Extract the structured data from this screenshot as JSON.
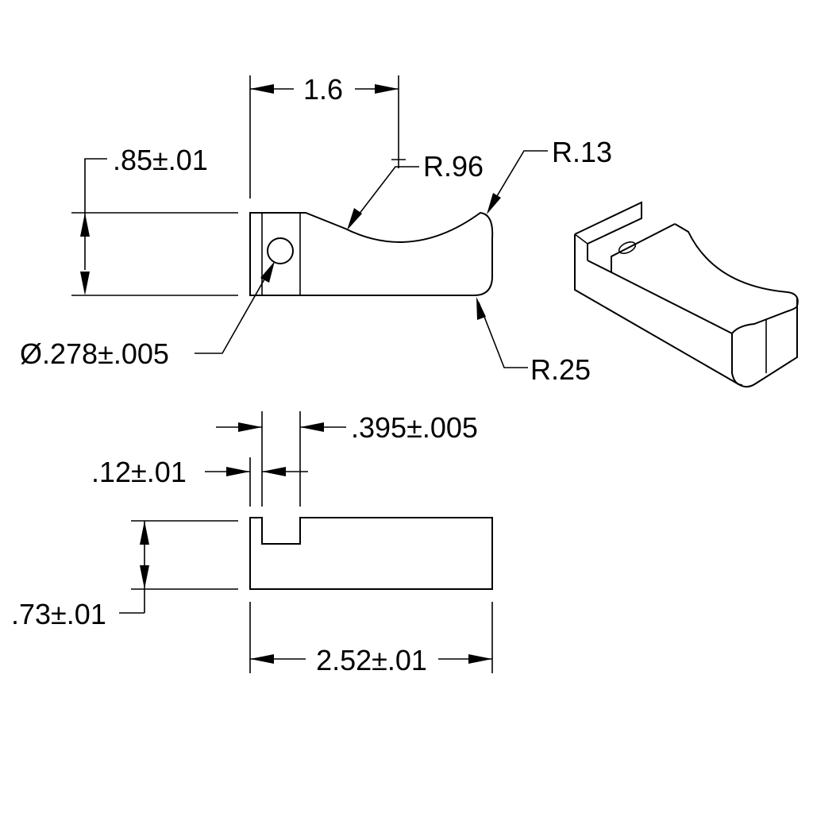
{
  "drawing": {
    "title": "",
    "dimensions": {
      "top_length": "1.6",
      "height": ".85±.01",
      "radius_large": "R.96",
      "radius_tip": "R.13",
      "hole_diameter": "Ø.278±.005",
      "radius_bottom": "R.25",
      "slot_width": ".395±.005",
      "wall_thickness": ".12±.01",
      "thickness": ".73±.01",
      "overall_length": "2.52±.01"
    }
  }
}
